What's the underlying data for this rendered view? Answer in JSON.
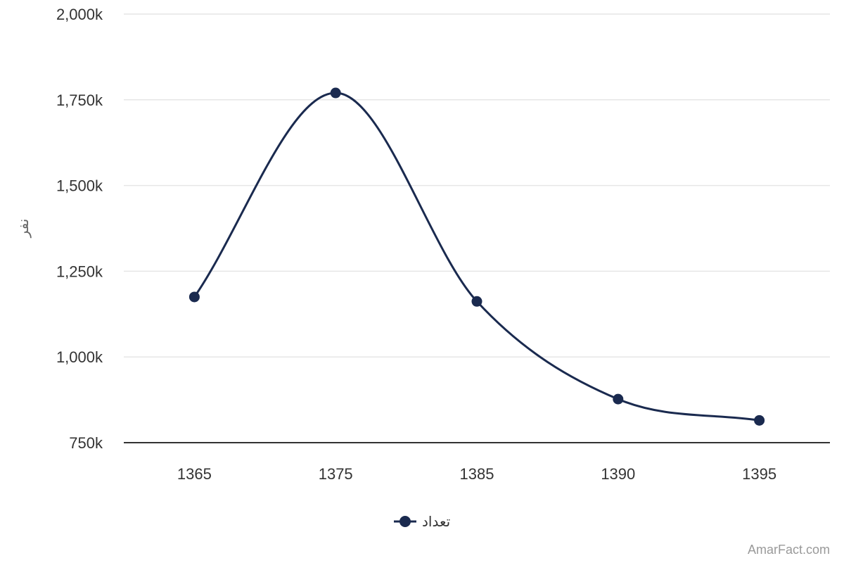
{
  "chart_data": {
    "type": "line",
    "title": "",
    "xlabel": "",
    "ylabel": "نفر",
    "categories": [
      "1365",
      "1375",
      "1385",
      "1390",
      "1395"
    ],
    "series": [
      {
        "name": "تعداد",
        "values": [
          1175000,
          1770000,
          1162000,
          877000,
          815000
        ]
      }
    ],
    "ylim": [
      750000,
      2000000
    ],
    "yticks": [
      750000,
      1000000,
      1250000,
      1500000,
      1750000,
      2000000
    ],
    "ytick_labels": [
      "750k",
      "1,000k",
      "1,250k",
      "1,500k",
      "1,750k",
      "2,000k"
    ],
    "grid": true,
    "legend_position": "bottom-center",
    "colors": {
      "series": "#1a2a4f",
      "grid": "#e6e6e6",
      "axis": "#333333"
    }
  },
  "credit": "AmarFact.com"
}
